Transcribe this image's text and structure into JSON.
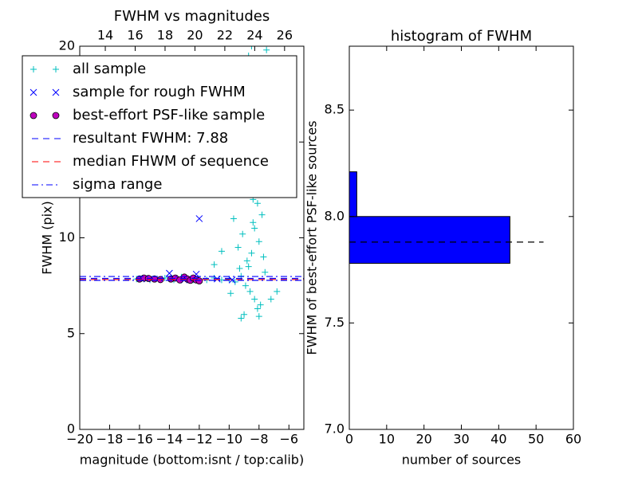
{
  "chart_data": [
    {
      "type": "scatter",
      "title": "FWHM vs magnitudes",
      "xlabel": "magnitude (bottom:isnt / top:calib)",
      "ylabel": "FWHM (pix)",
      "xlim": [
        -20,
        -5
      ],
      "ylim": [
        0,
        20
      ],
      "xticks": [
        {
          "value": -20,
          "label": "−20"
        },
        {
          "value": -18,
          "label": "−18"
        },
        {
          "value": -16,
          "label": "−16"
        },
        {
          "value": -14,
          "label": "−14"
        },
        {
          "value": -12,
          "label": "−12"
        },
        {
          "value": -10,
          "label": "−10"
        },
        {
          "value": -8,
          "label": "−8"
        },
        {
          "value": -6,
          "label": "−6"
        }
      ],
      "yticks": [
        0,
        5,
        10,
        15,
        20
      ],
      "x2lim": [
        12.29,
        27.29
      ],
      "x2ticks": [
        14,
        16,
        18,
        20,
        22,
        24,
        26
      ],
      "legend": "upper left",
      "series": [
        {
          "name": "all sample",
          "marker": "+",
          "color": "#00bfbf",
          "x": [
            -16.2,
            -15.8,
            -15.3,
            -14.9,
            -14.3,
            -13.7,
            -13.2,
            -12.8,
            -12.4,
            -12.0,
            -11.5,
            -11.0,
            -10.5,
            -10.0,
            -9.6,
            -9.2,
            -8.9,
            -8.7,
            -8.5,
            -8.3,
            -8.1,
            -7.9,
            -8.6,
            -8.2,
            -7.8,
            -8.4,
            -8.0,
            -7.7,
            -7.6,
            -8.8,
            -9.4,
            -9.1,
            -9.7,
            -10.0,
            -8.9,
            -8.5,
            -9.0,
            -8.2,
            -8.7,
            -7.5,
            -9.3,
            -8.6,
            -8.3,
            -7.9,
            -8.1,
            -9.0,
            -9.2,
            -8.0,
            -7.2,
            -6.8,
            -10.5,
            -11.0,
            -9.9,
            -8.4,
            -7.8,
            -8.8,
            -9.5,
            -8.0,
            -7.7,
            -8.5
          ],
          "y": [
            7.85,
            7.9,
            7.8,
            7.85,
            7.9,
            7.8,
            7.95,
            7.85,
            7.8,
            7.75,
            7.8,
            7.9,
            7.8,
            7.85,
            7.7,
            8.0,
            7.5,
            8.5,
            9.2,
            10.5,
            11.8,
            12.5,
            13.1,
            14.0,
            13.5,
            12.0,
            9.8,
            9.0,
            8.2,
            8.8,
            9.5,
            10.2,
            11.0,
            12.4,
            14.5,
            16.0,
            17.2,
            18.5,
            19.5,
            19.8,
            8.4,
            7.2,
            6.8,
            6.5,
            6.3,
            6.0,
            5.8,
            5.9,
            6.8,
            7.2,
            9.3,
            8.6,
            7.1,
            10.8,
            11.2,
            12.8,
            13.5,
            15.5,
            17.0,
            20.0
          ]
        },
        {
          "name": "sample for rough FWHM",
          "marker": "x",
          "color": "#0000ff",
          "x": [
            -12.0,
            -14.0,
            -12.2,
            -15.5,
            -13.0,
            -10.8,
            -9.8
          ],
          "y": [
            11.0,
            8.15,
            8.1,
            7.85,
            7.8,
            7.85,
            7.8
          ]
        },
        {
          "name": "best-effort PSF-like sample",
          "marker": "o",
          "color": "#bf00bf",
          "x": [
            -16.0,
            -15.7,
            -15.4,
            -15.0,
            -14.6,
            -13.9,
            -13.6,
            -13.3,
            -13.0,
            -12.8,
            -12.6,
            -12.4,
            -12.2,
            -12.0
          ],
          "y": [
            7.85,
            7.9,
            7.88,
            7.85,
            7.82,
            7.85,
            7.9,
            7.8,
            7.95,
            7.85,
            7.78,
            7.9,
            7.8,
            7.75
          ]
        },
        {
          "name": "resultant FWHM: 7.88",
          "marker": "hline",
          "dash": "8 6",
          "color": "#0000ff",
          "values": [
            7.88
          ]
        },
        {
          "name": "median FHWM of sequence",
          "marker": "hline",
          "dash": "8 6",
          "color": "#ff0000",
          "values": [
            7.82
          ]
        },
        {
          "name": "sigma range",
          "marker": "hline",
          "dash": "8 4 2 4",
          "color": "#0000ff",
          "values": [
            7.98,
            7.78
          ]
        }
      ]
    },
    {
      "type": "histogram",
      "title": "histogram of FWHM",
      "xlabel": "number of sources",
      "ylabel": "FWHM of best-effort PSF-like sources",
      "orientation": "horizontal",
      "color": "#0000ff",
      "bins": [
        7.78,
        8.0,
        8.21
      ],
      "counts": [
        43,
        2
      ],
      "xlim": [
        0,
        60
      ],
      "ylim": [
        7.0,
        8.8
      ],
      "xticks": [
        0,
        10,
        20,
        30,
        40,
        50,
        60
      ],
      "yticks": [
        {
          "value": 7,
          "label": "7.0"
        },
        7.5,
        {
          "value": 8,
          "label": "8.0"
        },
        8.5
      ],
      "hline": {
        "y": 7.88,
        "xmax": 52
      }
    }
  ]
}
